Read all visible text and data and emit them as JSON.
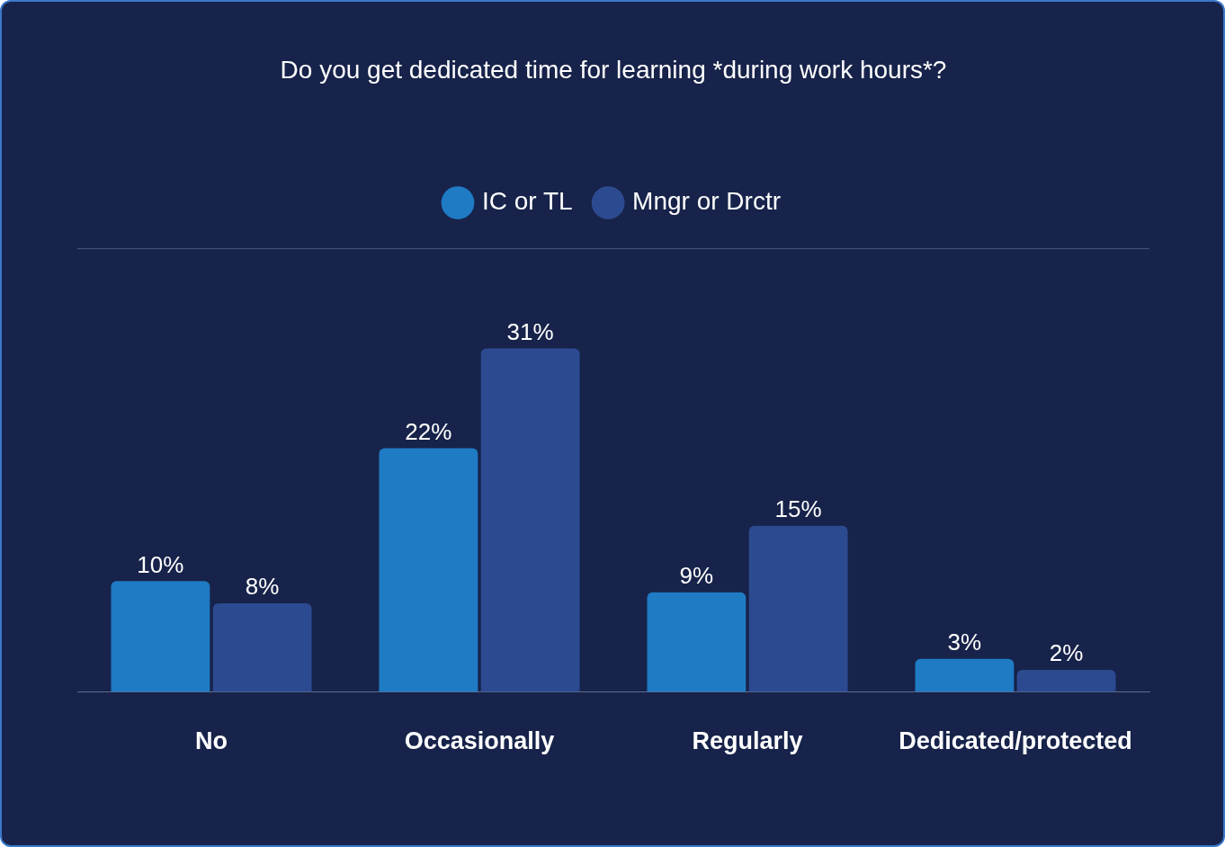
{
  "chart_data": {
    "type": "bar",
    "title": "Do you get dedicated time for learning *during work hours*?",
    "categories": [
      "No",
      "Occasionally",
      "Regularly",
      "Dedicated/protected"
    ],
    "series": [
      {
        "name": "IC or TL",
        "color": "#1f7bc4",
        "values": [
          10,
          22,
          9,
          3
        ],
        "value_labels": [
          "10%",
          "22%",
          "9%",
          "3%"
        ]
      },
      {
        "name": "Mngr or Drctr",
        "color": "#2c4a90",
        "values": [
          8,
          31,
          15,
          2
        ],
        "value_labels": [
          "8%",
          "31%",
          "15%",
          "2%"
        ]
      }
    ],
    "ylim": [
      0,
      40
    ],
    "legend": "top",
    "grid": false,
    "tick_labels": "x"
  }
}
